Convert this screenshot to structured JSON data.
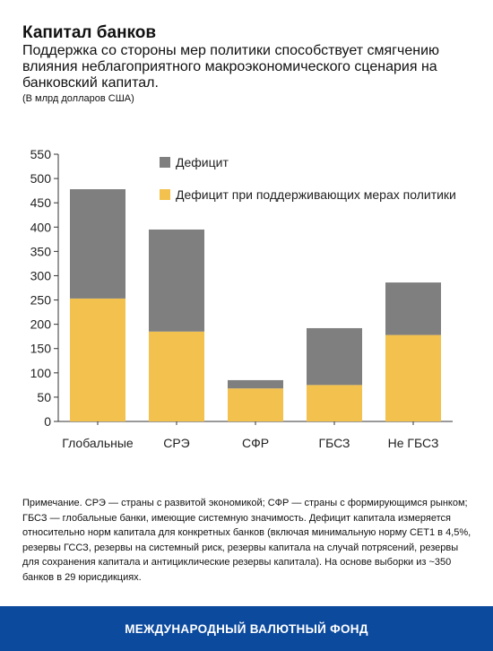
{
  "header": {
    "title": "Капитал банков",
    "subtitle": "Поддержка со стороны мер политики способствует смягчению влияния неблагоприятного макроэкономического сценария на банковский капитал.",
    "units": "(В млрд долларов США)"
  },
  "chart_data": {
    "type": "bar",
    "stacked": true,
    "categories": [
      "Глобальные",
      "СРЭ",
      "СФР",
      "ГБСЗ",
      "Не ГБСЗ"
    ],
    "series": [
      {
        "name": "Дефицит при поддерживающих мерах политики",
        "values": [
          253,
          185,
          68,
          75,
          178
        ],
        "color": "#f2c14e"
      },
      {
        "name": "Дефицит",
        "values": [
          225,
          210,
          17,
          117,
          108
        ],
        "color": "#7f7f7f"
      }
    ],
    "ylim": [
      0,
      550
    ],
    "yticks": [
      0,
      50,
      100,
      150,
      200,
      250,
      300,
      350,
      400,
      450,
      500,
      550
    ],
    "legend_position": "top-right",
    "grid": false
  },
  "note": "Примечание. СРЭ — страны с развитой экономикой; СФР — страны с формирующимся рынком; ГБСЗ — глобальные банки, имеющие системную значимость. Дефицит капитала измеряется относительно норм капитала для конкретных банков (включая минимальную норму CET1 в 4,5%, резервы ГССЗ, резервы на системный риск, резервы капитала на случай потрясений, резервы для сохранения капитала и антициклические резервы капитала).  На основе выборки из ~350 банков в 29 юрисдикциях.",
  "footer": {
    "text": "МЕЖДУНАРОДНЫЙ ВАЛЮТНЫЙ ФОНД",
    "color": "#0c4a9e"
  }
}
